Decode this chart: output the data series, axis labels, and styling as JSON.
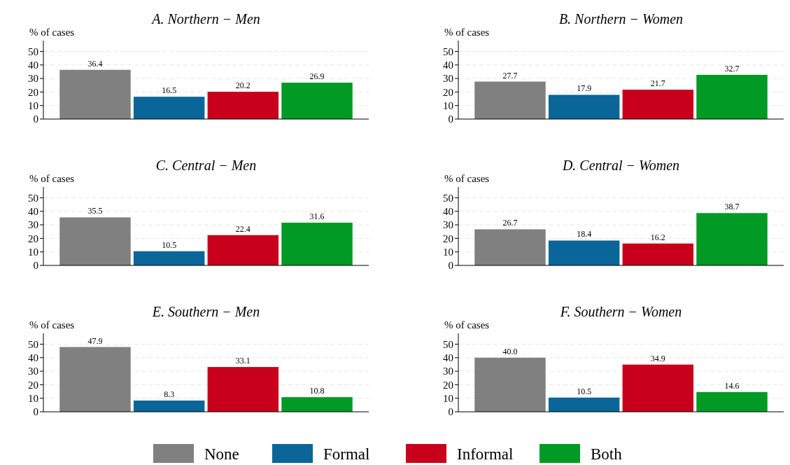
{
  "chart_data": [
    {
      "type": "bar",
      "title": "A. Northern − Men",
      "ylabel": "% of cases",
      "categories": [
        null
      ],
      "ylim": [
        0,
        58
      ],
      "yticks": [
        0,
        10,
        20,
        30,
        40,
        50
      ],
      "grid": "y",
      "legend": "bottom",
      "series": [
        {
          "name": "None",
          "color": "#808080",
          "values": [
            36.4
          ],
          "value_labels": [
            "36.4"
          ]
        },
        {
          "name": "Formal",
          "color": "#0a6699",
          "values": [
            16.5
          ],
          "value_labels": [
            "16.5"
          ]
        },
        {
          "name": "Informal",
          "color": "#c8001c",
          "values": [
            20.2
          ],
          "value_labels": [
            "20.2"
          ]
        },
        {
          "name": "Both",
          "color": "#009a24",
          "values": [
            26.9
          ],
          "value_labels": [
            "26.9"
          ]
        }
      ]
    },
    {
      "type": "bar",
      "title": "B. Northern − Women",
      "ylabel": "% of cases",
      "categories": [
        null
      ],
      "ylim": [
        0,
        58
      ],
      "yticks": [
        0,
        10,
        20,
        30,
        40,
        50
      ],
      "grid": "y",
      "series": [
        {
          "color": "#808080",
          "values": [
            27.7
          ],
          "value_labels": [
            "27.7"
          ]
        },
        {
          "color": "#0a6699",
          "values": [
            17.9
          ],
          "value_labels": [
            "17.9"
          ]
        },
        {
          "color": "#c8001c",
          "values": [
            21.7
          ],
          "value_labels": [
            "21.7"
          ]
        },
        {
          "color": "#009a24",
          "values": [
            32.7
          ],
          "value_labels": [
            "32.7"
          ]
        }
      ]
    },
    {
      "type": "bar",
      "title": "C. Central − Men",
      "ylabel": "% of cases",
      "categories": [
        null
      ],
      "ylim": [
        0,
        58
      ],
      "yticks": [
        0,
        10,
        20,
        30,
        40,
        50
      ],
      "grid": "y",
      "series": [
        {
          "color": "#808080",
          "values": [
            35.5
          ],
          "value_labels": [
            "35.5"
          ]
        },
        {
          "color": "#0a6699",
          "values": [
            10.5
          ],
          "value_labels": [
            "10.5"
          ]
        },
        {
          "color": "#c8001c",
          "values": [
            22.4
          ],
          "value_labels": [
            "22.4"
          ]
        },
        {
          "color": "#009a24",
          "values": [
            31.6
          ],
          "value_labels": [
            "31.6"
          ]
        }
      ]
    },
    {
      "type": "bar",
      "title": "D. Central − Women",
      "ylabel": "% of cases",
      "categories": [
        null
      ],
      "ylim": [
        0,
        58
      ],
      "yticks": [
        0,
        10,
        20,
        30,
        40,
        50
      ],
      "grid": "y",
      "series": [
        {
          "color": "#808080",
          "values": [
            26.7
          ],
          "value_labels": [
            "26.7"
          ]
        },
        {
          "color": "#0a6699",
          "values": [
            18.4
          ],
          "value_labels": [
            "18.4"
          ]
        },
        {
          "color": "#c8001c",
          "values": [
            16.2
          ],
          "value_labels": [
            "16.2"
          ]
        },
        {
          "color": "#009a24",
          "values": [
            38.7
          ],
          "value_labels": [
            "38.7"
          ]
        }
      ]
    },
    {
      "type": "bar",
      "title": "E. Southern − Men",
      "ylabel": "% of cases",
      "categories": [
        null
      ],
      "ylim": [
        0,
        58
      ],
      "yticks": [
        0,
        10,
        20,
        30,
        40,
        50
      ],
      "grid": "y",
      "series": [
        {
          "color": "#808080",
          "values": [
            47.9
          ],
          "value_labels": [
            "47.9"
          ]
        },
        {
          "color": "#0a6699",
          "values": [
            8.3
          ],
          "value_labels": [
            "8.3"
          ]
        },
        {
          "color": "#c8001c",
          "values": [
            33.1
          ],
          "value_labels": [
            "33.1"
          ]
        },
        {
          "color": "#009a24",
          "values": [
            10.8
          ],
          "value_labels": [
            "10.8"
          ]
        }
      ]
    },
    {
      "type": "bar",
      "title": "F. Southern − Women",
      "ylabel": "% of cases",
      "categories": [
        null
      ],
      "ylim": [
        0,
        58
      ],
      "yticks": [
        0,
        10,
        20,
        30,
        40,
        50
      ],
      "grid": "y",
      "series": [
        {
          "color": "#808080",
          "values": [
            40.0
          ],
          "value_labels": [
            "40.0"
          ]
        },
        {
          "color": "#0a6699",
          "values": [
            10.5
          ],
          "value_labels": [
            "10.5"
          ]
        },
        {
          "color": "#c8001c",
          "values": [
            34.9
          ],
          "value_labels": [
            "34.9"
          ]
        },
        {
          "color": "#009a24",
          "values": [
            14.6
          ],
          "value_labels": [
            "14.6"
          ]
        }
      ]
    }
  ]
}
